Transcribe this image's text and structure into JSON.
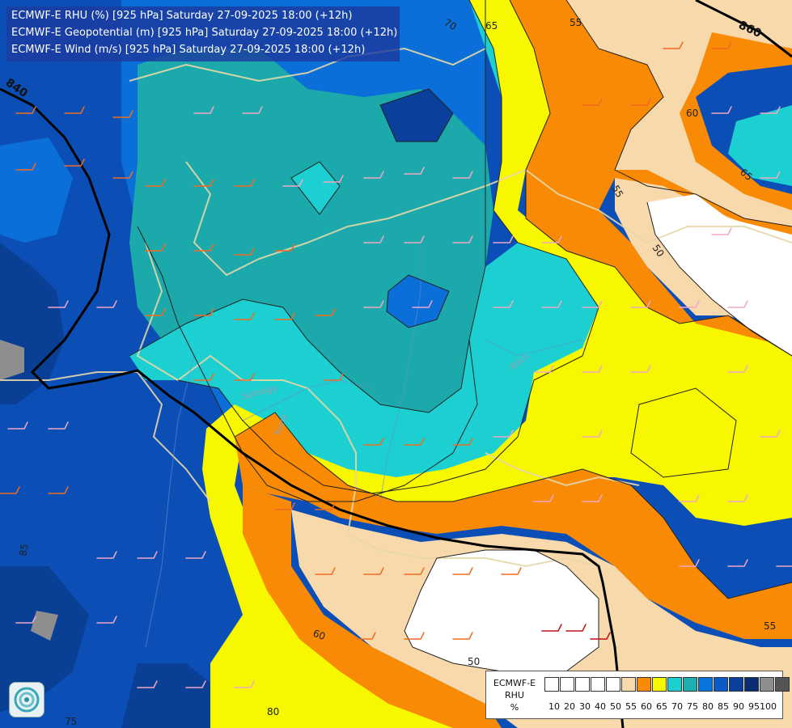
{
  "titles": [
    "ECMWF-E RHU (%) [925 hPa] Saturday 27-09-2025 18:00 (+12h)",
    "ECMWF-E Geopotential (m) [925 hPa] Saturday 27-09-2025 18:00 (+12h)",
    "ECMWF-E Wind (m/s) [925 hPa] Saturday 27-09-2025 18:00 (+12h)"
  ],
  "legend": {
    "title_line1": "ECMWF-E",
    "title_line2": "RHU",
    "unit": "%",
    "colors": [
      "#ffffff",
      "#ffffff",
      "#ffffff",
      "#ffffff",
      "#ffffff",
      "#f7d9ab",
      "#f88a06",
      "#f7f700",
      "#1ccfd0",
      "#1cafb0",
      "#0a74dc",
      "#0a5bc8",
      "#0b3f9c",
      "#0a2c70",
      "#8e8e8e",
      "#555555"
    ],
    "ticks": [
      "10",
      "20",
      "30",
      "40",
      "50",
      "55",
      "60",
      "65",
      "70",
      "75",
      "80",
      "85",
      "90",
      "95",
      "100"
    ]
  },
  "geopotential_labels": [
    "840",
    "860"
  ],
  "rhu_contour_labels": [
    "50",
    "50",
    "55",
    "55",
    "55",
    "60",
    "60",
    "65",
    "65",
    "70",
    "75",
    "80",
    "85"
  ],
  "place_labels": [
    "Somogy",
    "Tolna",
    "Bács"
  ],
  "logo": "ecmwf-logo"
}
